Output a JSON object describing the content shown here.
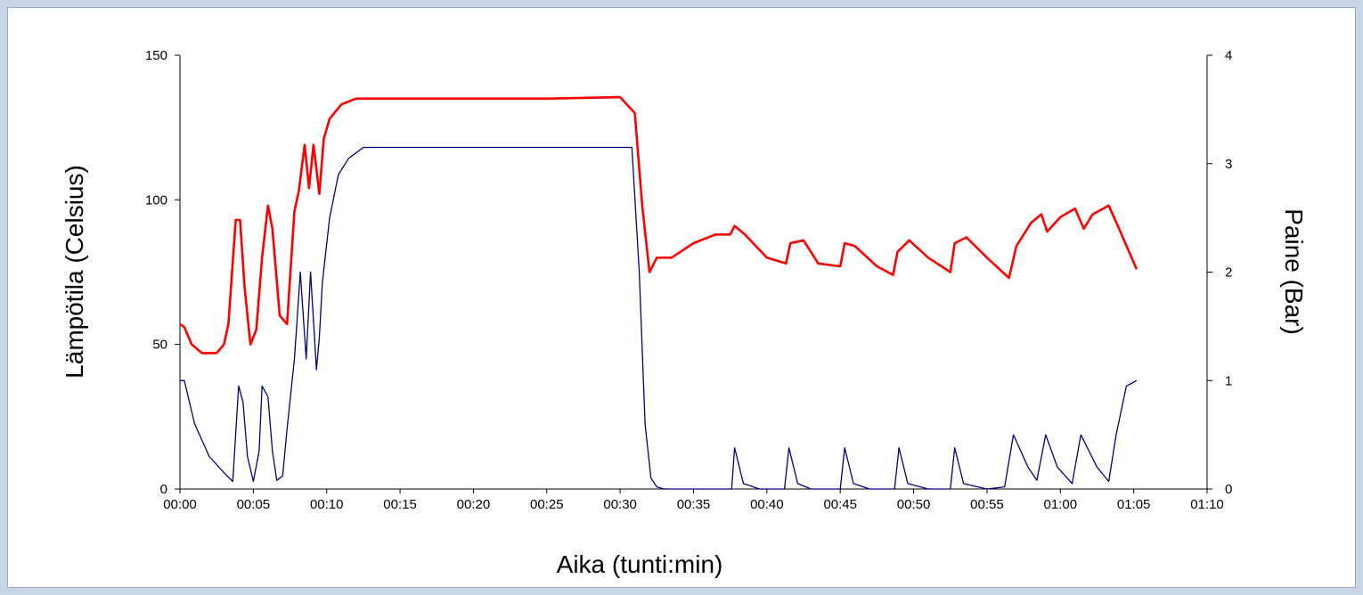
{
  "chart_data": {
    "type": "line",
    "title": "",
    "xlabel": "Aika (tunti:min)",
    "ylabel": "Lämpötila (Celsius)",
    "y2label": "Paine (Bar)",
    "xlim_min": [
      0,
      70
    ],
    "ylim": [
      0,
      150
    ],
    "y2lim": [
      0,
      4
    ],
    "x_ticks_min": [
      0,
      5,
      10,
      15,
      20,
      25,
      30,
      35,
      40,
      45,
      50,
      55,
      60,
      65,
      70
    ],
    "x_tick_labels": [
      "00:00",
      "00:05",
      "00:10",
      "00:15",
      "00:20",
      "00:25",
      "00:30",
      "00:35",
      "00:40",
      "00:45",
      "00:50",
      "00:55",
      "01:00",
      "01:05",
      "01:10"
    ],
    "y_ticks": [
      0,
      50,
      100,
      150
    ],
    "y_tick_labels": [
      "0",
      "50",
      "100",
      "150"
    ],
    "y2_ticks": [
      0,
      1,
      2,
      3,
      4
    ],
    "y2_tick_labels": [
      "0",
      "1",
      "2",
      "3",
      "4"
    ],
    "grid": false,
    "legend": "none",
    "series": [
      {
        "axis": "left",
        "color": "#ff0000",
        "x": [
          0,
          0.3,
          0.8,
          1.5,
          2.5,
          3.0,
          3.3,
          3.8,
          4.1,
          4.4,
          4.8,
          5.2,
          5.6,
          6.0,
          6.3,
          6.8,
          7.3,
          7.8,
          8.1,
          8.5,
          8.8,
          9.1,
          9.5,
          9.8,
          10.2,
          11.0,
          12.0,
          13.0,
          15,
          20,
          25,
          30,
          31.0,
          31.5,
          32.0,
          32.5,
          33.5,
          35,
          36.5,
          37.5,
          37.8,
          38.5,
          40,
          41.3,
          41.6,
          42.5,
          43.5,
          45.0,
          45.3,
          46.0,
          47.5,
          48.6,
          48.9,
          49.7,
          51.0,
          52.5,
          52.8,
          53.6,
          55.0,
          56.5,
          57.0,
          58.0,
          58.7,
          59.1,
          60.0,
          61.0,
          61.6,
          62.2,
          63.3,
          64.0,
          65.2
        ],
        "y": [
          57,
          56,
          50,
          47,
          47,
          50,
          57,
          93,
          93,
          70,
          50,
          55,
          80,
          98,
          90,
          60,
          57,
          96,
          103,
          119,
          104,
          119,
          102,
          121,
          128,
          133,
          135,
          135,
          135,
          135,
          135,
          135.5,
          130,
          98,
          75,
          80,
          80,
          85,
          88,
          88,
          91,
          88,
          80,
          78,
          85,
          86,
          78,
          77,
          85,
          84,
          77,
          74,
          82,
          86,
          80,
          75,
          85,
          87,
          80,
          73,
          84,
          92,
          95,
          89,
          94,
          97,
          90,
          95,
          98,
          90,
          76
        ]
      },
      {
        "axis": "right",
        "color": "#000080",
        "x": [
          0,
          0.3,
          1.0,
          2.0,
          3.0,
          3.6,
          4.0,
          4.3,
          4.6,
          5.0,
          5.4,
          5.6,
          6.0,
          6.3,
          6.6,
          7.0,
          7.3,
          7.8,
          8.2,
          8.6,
          8.9,
          9.3,
          9.5,
          9.7,
          10.2,
          10.8,
          11.5,
          12.5,
          13.0,
          15,
          20,
          25,
          30,
          30.8,
          31.3,
          31.7,
          32.1,
          32.5,
          33,
          35,
          37.6,
          37.8,
          38.4,
          39.5,
          41.2,
          41.5,
          42.1,
          43,
          45.0,
          45.3,
          45.9,
          47,
          48.7,
          49.0,
          49.6,
          51,
          52.5,
          52.8,
          53.4,
          55,
          56.2,
          56.8,
          57.8,
          58.4,
          59.0,
          59.8,
          60.8,
          61.4,
          62.5,
          63.3,
          63.8,
          64.5,
          65.2
        ],
        "y": [
          1.0,
          1.0,
          0.6,
          0.3,
          0.15,
          0.07,
          0.95,
          0.8,
          0.3,
          0.07,
          0.35,
          0.95,
          0.85,
          0.35,
          0.08,
          0.12,
          0.55,
          1.2,
          2.0,
          1.2,
          2.0,
          1.1,
          1.4,
          1.9,
          2.5,
          2.9,
          3.05,
          3.15,
          3.15,
          3.15,
          3.15,
          3.15,
          3.15,
          3.15,
          2.0,
          0.6,
          0.1,
          0.02,
          0.0,
          0.0,
          0.0,
          0.38,
          0.05,
          0.0,
          0.0,
          0.38,
          0.05,
          0.0,
          0.0,
          0.38,
          0.05,
          0.0,
          0.0,
          0.38,
          0.05,
          0.0,
          0.0,
          0.38,
          0.05,
          0.0,
          0.02,
          0.5,
          0.2,
          0.08,
          0.5,
          0.2,
          0.05,
          0.5,
          0.2,
          0.07,
          0.5,
          0.95,
          1.0
        ]
      }
    ]
  }
}
